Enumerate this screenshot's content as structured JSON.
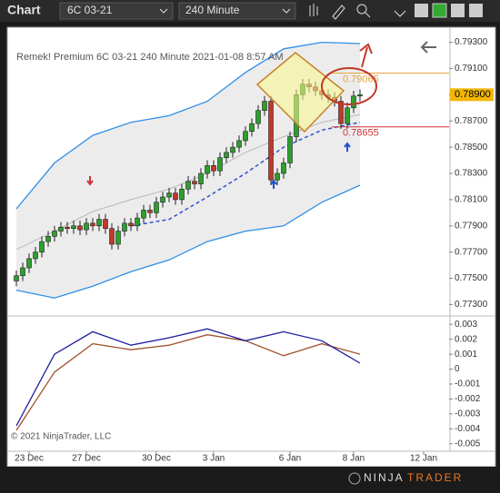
{
  "toolbar": {
    "tab": "Chart",
    "instrument": "6C 03-21",
    "interval": "240 Minute"
  },
  "footer": {
    "brand_left": "NINJA",
    "brand_right": "TRADER"
  },
  "chart_data": {
    "type": "candlestick",
    "title": "Remek!  Premium  6C 03-21  240 Minute  2021-01-08 8:57 AM",
    "copyright": "© 2021 NinjaTrader, LLC",
    "x": [
      0,
      1,
      2,
      3,
      4,
      5,
      6,
      7,
      8,
      9,
      10,
      11,
      12,
      13,
      14,
      15,
      16,
      17,
      18,
      19,
      20,
      21,
      22,
      23,
      24,
      25,
      26,
      27,
      28,
      29,
      30,
      31,
      32,
      33,
      34,
      35,
      36,
      37,
      38,
      39,
      40,
      41,
      42,
      43,
      44,
      45,
      46,
      47,
      48,
      49,
      50,
      51,
      52,
      53,
      54
    ],
    "open": [
      0.7748,
      0.7752,
      0.7758,
      0.7765,
      0.777,
      0.7778,
      0.7782,
      0.7786,
      0.7789,
      0.7788,
      0.779,
      0.7787,
      0.7792,
      0.779,
      0.7795,
      0.7788,
      0.7776,
      0.7786,
      0.7792,
      0.779,
      0.7796,
      0.7802,
      0.78,
      0.7808,
      0.7812,
      0.7815,
      0.781,
      0.7818,
      0.7824,
      0.7822,
      0.783,
      0.7836,
      0.7832,
      0.7842,
      0.7846,
      0.785,
      0.7855,
      0.7862,
      0.7868,
      0.7878,
      0.7885,
      0.7825,
      0.783,
      0.7838,
      0.7858,
      0.789,
      0.7898,
      0.7896,
      0.7893,
      0.789,
      0.7888,
      0.7885,
      0.7868,
      0.788,
      0.7889
    ],
    "high": [
      0.7756,
      0.7762,
      0.7769,
      0.7774,
      0.7782,
      0.7786,
      0.779,
      0.7793,
      0.7793,
      0.7794,
      0.7794,
      0.7796,
      0.7796,
      0.7799,
      0.7799,
      0.7792,
      0.779,
      0.7796,
      0.7796,
      0.78,
      0.7806,
      0.7806,
      0.7812,
      0.7816,
      0.7819,
      0.7819,
      0.7822,
      0.7828,
      0.7828,
      0.7834,
      0.784,
      0.784,
      0.7846,
      0.785,
      0.7854,
      0.7859,
      0.7866,
      0.7872,
      0.7882,
      0.7889,
      0.7889,
      0.7834,
      0.7842,
      0.7862,
      0.7894,
      0.7902,
      0.7902,
      0.79,
      0.7897,
      0.7894,
      0.7892,
      0.7889,
      0.7884,
      0.7893,
      0.7894
    ],
    "low": [
      0.7744,
      0.7748,
      0.7754,
      0.7761,
      0.7766,
      0.7774,
      0.7778,
      0.7782,
      0.7784,
      0.7784,
      0.7783,
      0.7783,
      0.7786,
      0.7786,
      0.7784,
      0.7772,
      0.7772,
      0.7782,
      0.7786,
      0.7786,
      0.7792,
      0.7796,
      0.7796,
      0.7804,
      0.7808,
      0.7806,
      0.7806,
      0.7814,
      0.7818,
      0.7818,
      0.7826,
      0.7828,
      0.7828,
      0.7838,
      0.7842,
      0.7846,
      0.7851,
      0.7858,
      0.7864,
      0.7874,
      0.7821,
      0.7821,
      0.7826,
      0.7834,
      0.7854,
      0.7886,
      0.7892,
      0.7889,
      0.7886,
      0.7884,
      0.7881,
      0.7864,
      0.7864,
      0.7876,
      0.7885
    ],
    "close": [
      0.7752,
      0.7758,
      0.7765,
      0.777,
      0.7778,
      0.7782,
      0.7786,
      0.7789,
      0.7788,
      0.779,
      0.7787,
      0.7792,
      0.779,
      0.7795,
      0.7788,
      0.7776,
      0.7786,
      0.7792,
      0.779,
      0.7796,
      0.7802,
      0.78,
      0.7808,
      0.7812,
      0.7815,
      0.781,
      0.7818,
      0.7824,
      0.7822,
      0.783,
      0.7836,
      0.7832,
      0.7842,
      0.7846,
      0.785,
      0.7855,
      0.7862,
      0.7868,
      0.7878,
      0.7885,
      0.7825,
      0.783,
      0.7838,
      0.7858,
      0.789,
      0.7898,
      0.7896,
      0.7893,
      0.789,
      0.7888,
      0.7885,
      0.7868,
      0.788,
      0.7889,
      0.789
    ],
    "up_color": "#2ca02c",
    "down_color": "#c0392b",
    "xlim": [
      -0.5,
      68
    ],
    "xticks": [
      {
        "value": 2,
        "label": "23 Dec"
      },
      {
        "value": 11,
        "label": "27 Dec"
      },
      {
        "value": 22,
        "label": "30 Dec"
      },
      {
        "value": 31,
        "label": "3 Jan"
      },
      {
        "value": 43,
        "label": "6 Jan"
      },
      {
        "value": 53,
        "label": "8 Jan"
      },
      {
        "value": 64,
        "label": "12 Jan"
      }
    ],
    "ylim": [
      0.7722,
      0.7938
    ],
    "yticks": [
      {
        "value": 0.793,
        "label": "0.79300"
      },
      {
        "value": 0.791,
        "label": "0.79100"
      },
      {
        "value": 0.789,
        "label": "0.78900"
      },
      {
        "value": 0.787,
        "label": "0.78700"
      },
      {
        "value": 0.785,
        "label": "0.78500"
      },
      {
        "value": 0.783,
        "label": "0.78300"
      },
      {
        "value": 0.781,
        "label": "0.78100"
      },
      {
        "value": 0.779,
        "label": "0.77900"
      },
      {
        "value": 0.777,
        "label": "0.77700"
      },
      {
        "value": 0.775,
        "label": "0.77500"
      },
      {
        "value": 0.773,
        "label": "0.77300"
      }
    ],
    "grid": false,
    "last_price": {
      "value": 0.789,
      "label": "0.78900",
      "color": "#f2b705"
    },
    "levels": [
      {
        "value": 0.79065,
        "label": "0.79065",
        "color": "#e8a33d"
      },
      {
        "value": 0.78655,
        "label": "0.78655",
        "color": "#d0343a"
      }
    ],
    "bands": {
      "x": [
        0,
        6,
        12,
        18,
        24,
        30,
        36,
        42,
        48,
        54
      ],
      "upper": [
        0.7803,
        0.7838,
        0.7859,
        0.7869,
        0.7874,
        0.7885,
        0.7907,
        0.7925,
        0.793,
        0.7929
      ],
      "lower": [
        0.7741,
        0.7735,
        0.7744,
        0.7755,
        0.7764,
        0.7778,
        0.7786,
        0.779,
        0.7808,
        0.7821
      ],
      "middle": [
        0.7772,
        0.7786,
        0.7801,
        0.781,
        0.7818,
        0.783,
        0.7846,
        0.7858,
        0.7869,
        0.7875
      ],
      "ema": [
        null,
        null,
        null,
        0.779,
        0.7795,
        0.7812,
        0.783,
        0.785,
        0.7863,
        0.7869
      ],
      "band_color": "#2f8fe8",
      "fill_color": "#ececec",
      "middle_color": "#b8b8b8",
      "ema_color": "#3050d0"
    },
    "macd": {
      "ylim": [
        -0.0055,
        0.0035
      ],
      "yticks": [
        0.003,
        0.002,
        0.001,
        0,
        -0.001,
        -0.002,
        -0.003,
        -0.004,
        -0.005
      ],
      "macd": [
        -0.0038,
        0.001,
        0.0025,
        0.0016,
        0.0021,
        0.0027,
        0.0019,
        0.0025,
        0.0019,
        0.0004
      ],
      "signal": [
        -0.0041,
        -0.0002,
        0.0017,
        0.0013,
        0.0016,
        0.0023,
        0.0019,
        0.0009,
        0.0017,
        0.001
      ],
      "macd_color": "#1c1ca0",
      "signal_color": "#a0522d"
    }
  }
}
